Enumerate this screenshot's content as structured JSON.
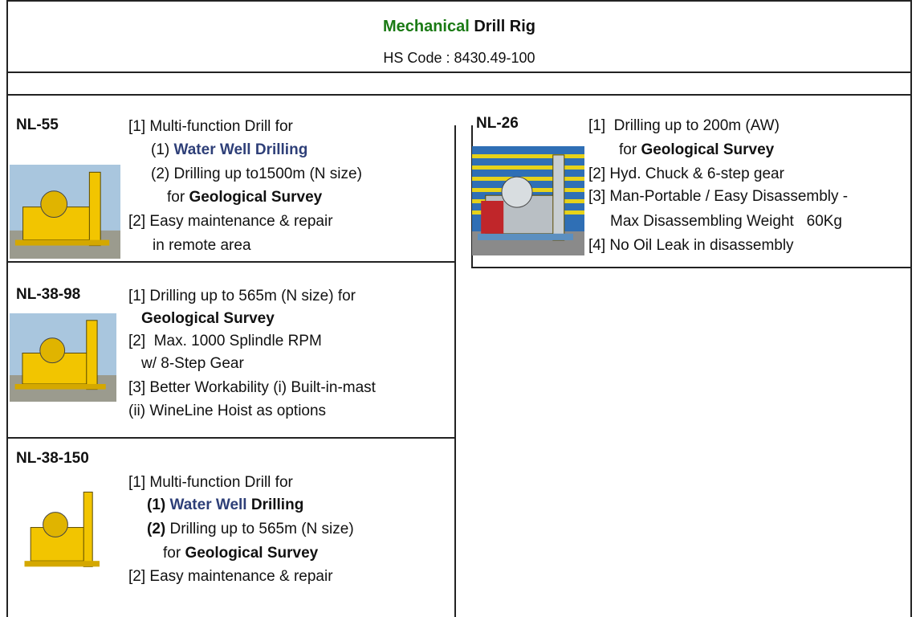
{
  "header": {
    "title": [
      {
        "text": "Mechanical",
        "style": "green"
      },
      {
        "text": " Drill Rig",
        "style": "bold"
      }
    ],
    "hs_code": "HS Code : 8430.49-100"
  },
  "products": [
    {
      "model": "NL-55",
      "lines": [
        [
          {
            "text": "[1] Multi-function Drill for"
          }
        ],
        [
          {
            "text": "(1) "
          },
          {
            "text": "Water Well Drilling",
            "style": "blue"
          }
        ],
        [
          {
            "text": "(2) Drilling up to1500m (N size)"
          }
        ],
        [
          {
            "text": "for "
          },
          {
            "text": "Geological Survey",
            "style": "bold"
          }
        ],
        [
          {
            "text": "[2] Easy maintenance & repair"
          }
        ],
        [
          {
            "text": "in remote area"
          }
        ]
      ]
    },
    {
      "model": "NL-38-98",
      "lines": [
        [
          {
            "text": "[1] Drilling up to 565m (N size) for"
          }
        ],
        [
          {
            "text": "Geological Survey",
            "style": "bold"
          }
        ],
        [
          {
            "text": "[2]  Max. 1000 Splindle RPM"
          }
        ],
        [
          {
            "text": "w/ 8-Step Gear"
          }
        ],
        [
          {
            "text": "[3] Better Workability (i) Built-in-mast"
          }
        ],
        [
          {
            "text": "(ii) WineLine Hoist as options"
          }
        ]
      ]
    },
    {
      "model": "NL-38-150",
      "lines": [
        [
          {
            "text": "[1] Multi-function Drill for"
          }
        ],
        [
          {
            "text": "(1) ",
            "style": "bold"
          },
          {
            "text": "Water Well",
            "style": "blue"
          },
          {
            "text": " Drilling",
            "style": "bold"
          }
        ],
        [
          {
            "text": "(2)",
            "style": "bold"
          },
          {
            "text": " Drilling up to 565m (N size)"
          }
        ],
        [
          {
            "text": "for "
          },
          {
            "text": "Geological Survey",
            "style": "bold"
          }
        ],
        [
          {
            "text": "[2] Easy maintenance & repair"
          }
        ]
      ]
    },
    {
      "model": "NL-26",
      "lines": [
        [
          {
            "text": "[1]  Drilling up to 200m (AW)"
          }
        ],
        [
          {
            "text": "for "
          },
          {
            "text": "Geological Survey",
            "style": "bold"
          }
        ],
        [
          {
            "text": "[2] Hyd. Chuck & 6-step gear"
          }
        ],
        [
          {
            "text": "[3] Man-Portable / Easy Disassembly -"
          }
        ],
        [
          {
            "text": "Max Disassembling Weight   60Kg"
          }
        ],
        [
          {
            "text": "[4] No Oil Leak in disassembly"
          }
        ]
      ]
    }
  ]
}
